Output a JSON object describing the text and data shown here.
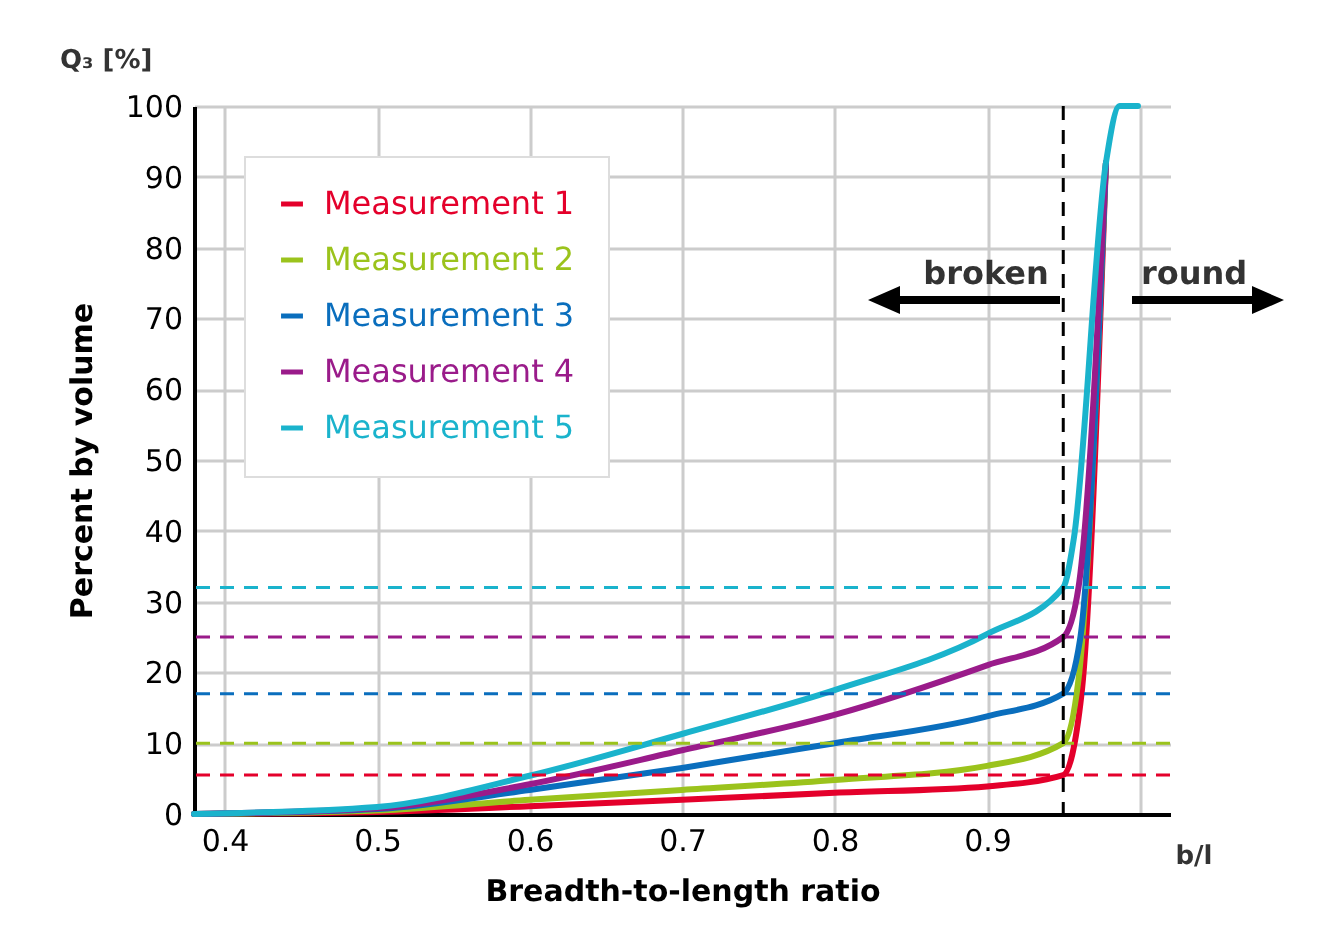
{
  "chart_data": {
    "type": "line",
    "xlabel": "Breadth-to-length ratio",
    "ylabel": "Percent by volume",
    "annotations": [
      "Q₃ [%]",
      "broken",
      "round",
      "b/l"
    ],
    "xlim": [
      0.38,
      1.02
    ],
    "xticks": [
      0.4,
      0.5,
      0.6,
      0.7,
      0.8,
      0.9,
      {
        "value": 1.0,
        "label": null
      }
    ],
    "ylim": [
      0,
      100
    ],
    "yticks": [
      0,
      10,
      20,
      30,
      40,
      50,
      60,
      70,
      80,
      90,
      100
    ],
    "grid": true,
    "legend": "top left",
    "series": [
      {
        "name": "Measurement 1",
        "color": "#e4002b",
        "x": [
          0.38,
          0.5,
          0.6,
          0.7,
          0.8,
          0.9,
          0.95,
          0.962,
          0.978
        ],
        "values": [
          0,
          0.3,
          1.1,
          2,
          3,
          3.9,
          5.5,
          17,
          92
        ]
      },
      {
        "name": "Measurement 2",
        "color": "#9bc31c",
        "x": [
          0.38,
          0.5,
          0.6,
          0.7,
          0.8,
          0.9,
          0.95,
          0.96,
          0.978
        ],
        "values": [
          0,
          0.5,
          2,
          3.4,
          4.8,
          6.8,
          10,
          19,
          92
        ]
      },
      {
        "name": "Measurement 3",
        "color": "#0a6ebd",
        "x": [
          0.38,
          0.5,
          0.6,
          0.7,
          0.8,
          0.9,
          0.95,
          0.961,
          0.978
        ],
        "values": [
          0,
          0.7,
          3.4,
          6.5,
          10,
          13.8,
          17,
          24.6,
          92
        ]
      },
      {
        "name": "Measurement 4",
        "color": "#9a1b8a",
        "x": [
          0.38,
          0.5,
          0.6,
          0.7,
          0.8,
          0.9,
          0.95,
          0.96,
          0.978
        ],
        "values": [
          0,
          0.8,
          4.2,
          9,
          14,
          21,
          25,
          32,
          92
        ]
      },
      {
        "name": "Measurement 5",
        "color": "#1ab3cc",
        "x": [
          0.38,
          0.5,
          0.6,
          0.7,
          0.8,
          0.9,
          0.95,
          0.957,
          0.978,
          0.987,
          0.999
        ],
        "values": [
          0,
          1,
          5.4,
          11.3,
          17.5,
          25.4,
          32,
          39,
          92,
          100,
          100
        ]
      }
    ],
    "ref_lines": [
      {
        "axis": "y",
        "value": 5.5,
        "color": "#e4002b",
        "line_style": "dashed"
      },
      {
        "axis": "y",
        "value": 10,
        "color": "#9bc31c",
        "line_style": "dashed"
      },
      {
        "axis": "y",
        "value": 17,
        "color": "#0a6ebd",
        "line_style": "dashed"
      },
      {
        "axis": "y",
        "value": 25,
        "color": "#9a1b8a",
        "line_style": "dashed"
      },
      {
        "axis": "y",
        "value": 32,
        "color": "#1ab3cc",
        "line_style": "dashed"
      },
      {
        "axis": "x",
        "value": 0.95,
        "color": "#000000",
        "line_style": "dashed"
      }
    ]
  }
}
